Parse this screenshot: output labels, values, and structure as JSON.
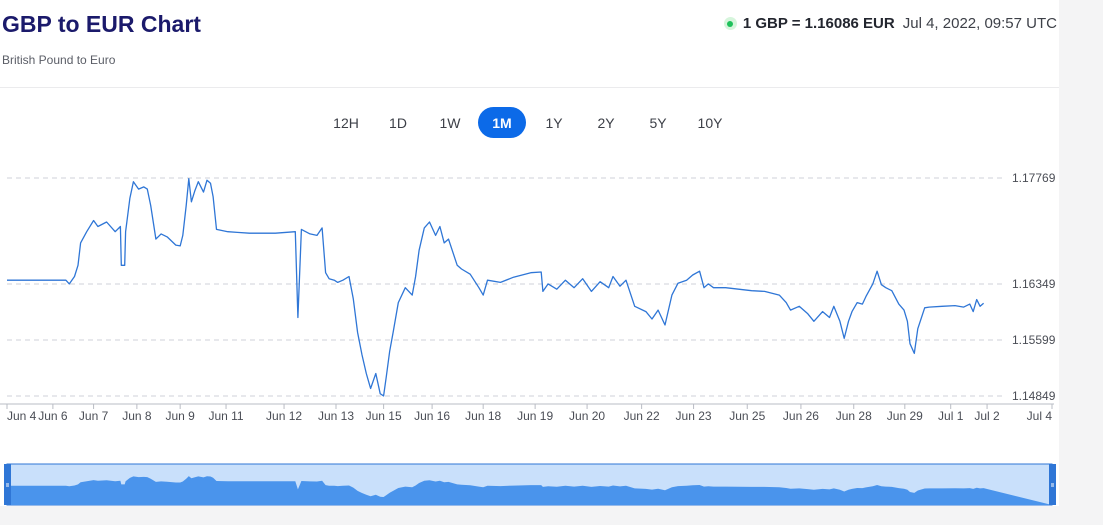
{
  "header": {
    "title": "GBP to EUR Chart",
    "subtitle": "British Pound to Euro",
    "rate": "1 GBP = 1.16086 EUR",
    "timestamp": "Jul 4, 2022, 09:57 UTC",
    "live_indicator_color": "#1ec15b"
  },
  "range_tabs": {
    "items": [
      "12H",
      "1D",
      "1W",
      "1M",
      "1Y",
      "2Y",
      "5Y",
      "10Y"
    ],
    "active": "1M"
  },
  "colors": {
    "line": "#2f76d6",
    "active_tab": "#0c6ae8",
    "navigator_fill": "#4a94ec",
    "navigator_bg": "#c9e0fb"
  },
  "chart_data": {
    "type": "line",
    "series": [
      {
        "values": [
          [
            0,
            1.164
          ],
          [
            0.68,
            1.164
          ],
          [
            0.72,
            1.1635
          ],
          [
            0.78,
            1.1645
          ],
          [
            0.82,
            1.166
          ],
          [
            0.85,
            1.169
          ],
          [
            0.92,
            1.1705
          ],
          [
            1.0,
            1.172
          ],
          [
            1.05,
            1.1712
          ],
          [
            1.15,
            1.1718
          ],
          [
            1.25,
            1.1705
          ],
          [
            1.31,
            1.1712
          ],
          [
            1.32,
            1.166
          ],
          [
            1.36,
            1.166
          ],
          [
            1.37,
            1.1705
          ],
          [
            1.42,
            1.175
          ],
          [
            1.46,
            1.1772
          ],
          [
            1.52,
            1.1762
          ],
          [
            1.58,
            1.1765
          ],
          [
            1.62,
            1.1762
          ],
          [
            1.66,
            1.174
          ],
          [
            1.72,
            1.1695
          ],
          [
            1.78,
            1.1702
          ],
          [
            1.85,
            1.1698
          ],
          [
            1.95,
            1.1687
          ],
          [
            2.0,
            1.1686
          ],
          [
            2.03,
            1.17
          ],
          [
            2.07,
            1.174
          ],
          [
            2.1,
            1.1776
          ],
          [
            2.13,
            1.1745
          ],
          [
            2.17,
            1.176
          ],
          [
            2.21,
            1.1772
          ],
          [
            2.27,
            1.1758
          ],
          [
            2.31,
            1.1774
          ],
          [
            2.35,
            1.177
          ],
          [
            2.38,
            1.1752
          ],
          [
            2.42,
            1.1708
          ],
          [
            2.55,
            1.1705
          ],
          [
            2.66,
            1.1704
          ],
          [
            2.8,
            1.1703
          ],
          [
            3.1,
            1.1703
          ],
          [
            3.33,
            1.1705
          ],
          [
            3.36,
            1.159
          ],
          [
            3.4,
            1.1708
          ],
          [
            3.5,
            1.1702
          ],
          [
            3.58,
            1.17
          ],
          [
            3.64,
            1.171
          ],
          [
            3.68,
            1.165
          ],
          [
            3.72,
            1.1642
          ],
          [
            3.78,
            1.164
          ],
          [
            3.82,
            1.1637
          ],
          [
            3.88,
            1.164
          ],
          [
            3.95,
            1.1645
          ],
          [
            4.0,
            1.1615
          ],
          [
            4.05,
            1.157
          ],
          [
            4.1,
            1.154
          ],
          [
            4.15,
            1.1515
          ],
          [
            4.2,
            1.1495
          ],
          [
            4.26,
            1.1515
          ],
          [
            4.31,
            1.1488
          ],
          [
            4.35,
            1.1485
          ],
          [
            4.38,
            1.151
          ],
          [
            4.42,
            1.1545
          ],
          [
            4.46,
            1.157
          ],
          [
            4.52,
            1.161
          ],
          [
            4.6,
            1.163
          ],
          [
            4.68,
            1.162
          ],
          [
            4.72,
            1.1645
          ],
          [
            4.76,
            1.168
          ],
          [
            4.82,
            1.171
          ],
          [
            4.88,
            1.1718
          ],
          [
            4.95,
            1.17
          ],
          [
            5.0,
            1.1712
          ],
          [
            5.05,
            1.169
          ],
          [
            5.1,
            1.1695
          ],
          [
            5.2,
            1.166
          ],
          [
            5.25,
            1.1655
          ],
          [
            5.35,
            1.1648
          ],
          [
            5.45,
            1.163
          ],
          [
            5.5,
            1.162
          ],
          [
            5.55,
            1.164
          ],
          [
            5.7,
            1.1637
          ],
          [
            5.85,
            1.1644
          ],
          [
            6.05,
            1.165
          ],
          [
            6.17,
            1.1651
          ],
          [
            6.19,
            1.1625
          ],
          [
            6.25,
            1.1635
          ],
          [
            6.35,
            1.1628
          ],
          [
            6.45,
            1.164
          ],
          [
            6.55,
            1.163
          ],
          [
            6.65,
            1.1642
          ],
          [
            6.75,
            1.1625
          ],
          [
            6.85,
            1.1638
          ],
          [
            6.95,
            1.163
          ],
          [
            7.0,
            1.1645
          ],
          [
            7.08,
            1.1632
          ],
          [
            7.15,
            1.164
          ],
          [
            7.25,
            1.1605
          ],
          [
            7.38,
            1.1598
          ],
          [
            7.45,
            1.1588
          ],
          [
            7.52,
            1.16
          ],
          [
            7.6,
            1.158
          ],
          [
            7.68,
            1.162
          ],
          [
            7.75,
            1.1636
          ],
          [
            7.85,
            1.164
          ],
          [
            7.92,
            1.1647
          ],
          [
            8.0,
            1.1652
          ],
          [
            8.05,
            1.163
          ],
          [
            8.1,
            1.1635
          ],
          [
            8.16,
            1.163
          ],
          [
            8.3,
            1.163
          ],
          [
            8.45,
            1.1628
          ],
          [
            8.6,
            1.1626
          ],
          [
            8.75,
            1.1625
          ],
          [
            8.92,
            1.162
          ],
          [
            9.0,
            1.161
          ],
          [
            9.05,
            1.16
          ],
          [
            9.15,
            1.1605
          ],
          [
            9.25,
            1.1595
          ],
          [
            9.32,
            1.1585
          ],
          [
            9.42,
            1.1598
          ],
          [
            9.5,
            1.159
          ],
          [
            9.55,
            1.1605
          ],
          [
            9.62,
            1.1585
          ],
          [
            9.67,
            1.1562
          ],
          [
            9.72,
            1.1585
          ],
          [
            9.76,
            1.1598
          ],
          [
            9.82,
            1.161
          ],
          [
            9.88,
            1.1608
          ],
          [
            9.92,
            1.1618
          ],
          [
            10.0,
            1.1635
          ],
          [
            10.05,
            1.1652
          ],
          [
            10.1,
            1.1634
          ],
          [
            10.15,
            1.163
          ],
          [
            10.22,
            1.1626
          ],
          [
            10.3,
            1.1608
          ],
          [
            10.36,
            1.16
          ],
          [
            10.4,
            1.1585
          ],
          [
            10.43,
            1.1555
          ],
          [
            10.48,
            1.1542
          ],
          [
            10.52,
            1.1575
          ],
          [
            10.6,
            1.1603
          ],
          [
            10.65,
            1.1604
          ],
          [
            10.8,
            1.1605
          ],
          [
            10.95,
            1.1606
          ],
          [
            11.05,
            1.1604
          ],
          [
            11.12,
            1.1608
          ],
          [
            11.16,
            1.1598
          ],
          [
            11.2,
            1.1614
          ],
          [
            11.24,
            1.1605
          ],
          [
            11.28,
            1.1609
          ]
        ]
      }
    ],
    "x_ticks": [
      {
        "x": 0.0,
        "label": "Jun 4"
      },
      {
        "x": 0.53,
        "label": "Jun 6"
      },
      {
        "x": 1.0,
        "label": "Jun 7"
      },
      {
        "x": 1.5,
        "label": "Jun 8"
      },
      {
        "x": 2.0,
        "label": "Jun 9"
      },
      {
        "x": 2.53,
        "label": "Jun 11"
      },
      {
        "x": 3.2,
        "label": "Jun 12"
      },
      {
        "x": 3.8,
        "label": "Jun 13"
      },
      {
        "x": 4.35,
        "label": "Jun 15"
      },
      {
        "x": 4.91,
        "label": "Jun 16"
      },
      {
        "x": 5.5,
        "label": "Jun 18"
      },
      {
        "x": 6.1,
        "label": "Jun 19"
      },
      {
        "x": 6.7,
        "label": "Jun 20"
      },
      {
        "x": 7.33,
        "label": "Jun 22"
      },
      {
        "x": 7.93,
        "label": "Jun 23"
      },
      {
        "x": 8.55,
        "label": "Jun 25"
      },
      {
        "x": 9.17,
        "label": "Jun 26"
      },
      {
        "x": 9.78,
        "label": "Jun 28"
      },
      {
        "x": 10.37,
        "label": "Jun 29"
      },
      {
        "x": 10.9,
        "label": "Jul 1"
      },
      {
        "x": 11.32,
        "label": "Jul 2"
      },
      {
        "x": 12.07,
        "label": "Jul 4"
      }
    ],
    "y_ticks": [
      1.17769,
      1.16349,
      1.15599,
      1.14849
    ],
    "ylim": [
      1.14849,
      1.17769
    ],
    "xlim": [
      0,
      12.07
    ],
    "grid": "horizontal dashed at y tick values",
    "legend": "none",
    "navigator": true
  }
}
